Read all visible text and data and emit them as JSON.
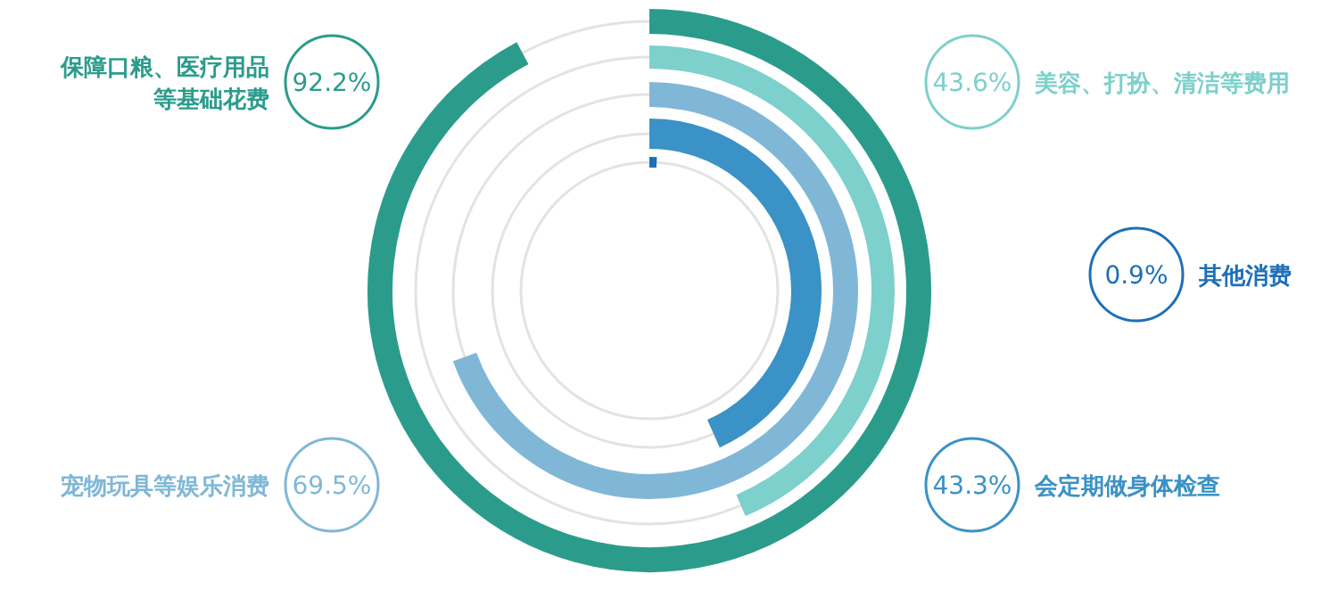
{
  "chart_data": {
    "type": "other",
    "categories": [
      "保障口粮、医疗用品等基础花费",
      "美容、打扮、清洁等费用",
      "宠物玩具等娱乐消费",
      "会定期做身体检查",
      "其他消费"
    ],
    "values": [
      92.2,
      43.6,
      69.5,
      43.3,
      0.9
    ],
    "value_labels": [
      "92.2%",
      "43.6%",
      "69.5%",
      "43.3%",
      "0.9%"
    ],
    "colors": [
      "#2b9c8c",
      "#7dd0cc",
      "#80b7d7",
      "#3a92c6",
      "#1e6fb8"
    ]
  }
}
